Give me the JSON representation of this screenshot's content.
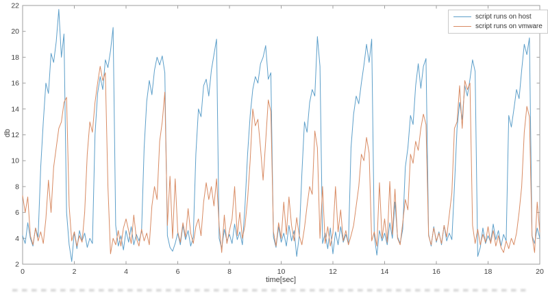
{
  "figure": {
    "background": "#ffffff",
    "axis_color": "#9e9e9e",
    "tick_label_color": "#3f3f3f"
  },
  "chart_data": {
    "type": "line",
    "title": "",
    "xlabel": "time[sec]",
    "ylabel": "db",
    "xlim": [
      0,
      20
    ],
    "ylim": [
      2,
      22
    ],
    "xticks": [
      0,
      2,
      4,
      6,
      8,
      10,
      12,
      14,
      16,
      18,
      20
    ],
    "yticks": [
      2,
      4,
      6,
      8,
      10,
      12,
      14,
      16,
      18,
      20,
      22
    ],
    "grid": false,
    "legend_position": "top-right",
    "x_step": 0.1,
    "series": [
      {
        "name": "script runs on host",
        "color": "#5b9ec9",
        "values": [
          4.2,
          3.6,
          5.2,
          4.0,
          3.4,
          4.8,
          4.1,
          9.5,
          13.0,
          16.0,
          15.2,
          18.3,
          17.6,
          19.2,
          21.7,
          18.0,
          19.8,
          6.0,
          3.5,
          2.2,
          4.5,
          3.2,
          4.6,
          3.8,
          4.4,
          3.3,
          4.0,
          3.6,
          12.0,
          15.2,
          16.5,
          15.5,
          17.8,
          17.2,
          18.5,
          20.3,
          5.0,
          3.4,
          4.2,
          3.1,
          4.6,
          3.7,
          4.9,
          3.5,
          4.3,
          3.8,
          4.5,
          11.0,
          14.6,
          16.2,
          15.1,
          17.0,
          18.0,
          17.4,
          18.1,
          16.8,
          4.2,
          3.3,
          3.0,
          3.6,
          4.4,
          3.5,
          5.0,
          3.9,
          4.6,
          3.4,
          4.1,
          10.5,
          14.0,
          13.4,
          15.8,
          16.3,
          15.0,
          17.0,
          18.2,
          19.4,
          4.0,
          3.2,
          4.7,
          3.8,
          4.3,
          3.6,
          5.1,
          3.9,
          4.5,
          3.5,
          6.5,
          10.5,
          13.5,
          15.5,
          16.5,
          16.0,
          17.5,
          18.0,
          18.9,
          16.3,
          16.8,
          4.1,
          3.3,
          4.9,
          3.7,
          4.4,
          3.4,
          5.0,
          3.8,
          4.6,
          2.6,
          4.2,
          9.0,
          13.0,
          12.2,
          14.5,
          15.5,
          15.0,
          19.6,
          17.3,
          3.6,
          4.4,
          3.2,
          4.8,
          2.8,
          4.5,
          3.5,
          4.9,
          3.7,
          4.3,
          3.6,
          11.0,
          13.6,
          15.0,
          14.4,
          16.0,
          17.4,
          19.0,
          17.6,
          19.4,
          4.2,
          2.7,
          4.6,
          3.8,
          4.4,
          3.5,
          5.2,
          4.0,
          6.8,
          4.1,
          3.6,
          4.7,
          9.5,
          11.0,
          13.5,
          12.8,
          15.8,
          17.5,
          15.6,
          17.3,
          17.9,
          4.3,
          3.4,
          4.9,
          3.7,
          4.5,
          3.5,
          5.0,
          3.8,
          4.4,
          3.9,
          8.0,
          12.5,
          14.5,
          13.2,
          15.8,
          15.0,
          16.3,
          17.8,
          16.9,
          2.6,
          3.3,
          4.8,
          3.6,
          4.2,
          3.7,
          5.1,
          3.9,
          4.6,
          3.4,
          4.3,
          3.8,
          13.5,
          12.6,
          14.0,
          15.5,
          14.8,
          17.0,
          19.0,
          18.2,
          19.5,
          4.2,
          3.6,
          4.8,
          4.0
        ]
      },
      {
        "name": "script runs on vmware",
        "color": "#d88a62",
        "values": [
          7.3,
          6.0,
          7.2,
          4.2,
          3.5,
          4.8,
          3.8,
          4.5,
          3.6,
          5.5,
          8.5,
          6.0,
          9.5,
          11.0,
          12.5,
          13.0,
          14.5,
          14.9,
          6.5,
          3.8,
          4.5,
          3.4,
          4.2,
          3.7,
          6.0,
          10.5,
          13.0,
          12.2,
          14.5,
          16.0,
          17.3,
          16.2,
          16.8,
          8.0,
          2.8,
          4.0,
          3.5,
          4.6,
          3.4,
          4.8,
          5.5,
          4.6,
          3.6,
          5.8,
          4.0,
          3.4,
          4.7,
          3.8,
          4.4,
          3.5,
          6.5,
          8.0,
          7.0,
          11.5,
          13.0,
          15.3,
          5.0,
          8.8,
          4.0,
          8.6,
          4.5,
          3.7,
          5.2,
          4.1,
          6.3,
          4.4,
          3.6,
          4.9,
          5.5,
          4.2,
          6.8,
          8.3,
          7.0,
          8.0,
          6.5,
          8.6,
          5.0,
          2.9,
          5.8,
          3.6,
          4.6,
          5.5,
          8.0,
          4.2,
          6.0,
          4.0,
          5.0,
          7.0,
          10.0,
          14.0,
          12.7,
          13.2,
          11.0,
          8.5,
          11.5,
          14.7,
          13.8,
          4.5,
          3.4,
          5.2,
          4.0,
          6.8,
          4.3,
          7.2,
          5.0,
          3.8,
          5.6,
          4.2,
          3.5,
          4.8,
          6.5,
          8.0,
          7.4,
          12.3,
          11.0,
          4.0,
          8.0,
          3.6,
          4.9,
          3.4,
          4.4,
          8.0,
          4.5,
          6.2,
          3.8,
          4.6,
          3.5,
          4.2,
          5.0,
          6.5,
          8.0,
          10.5,
          10.0,
          11.8,
          10.6,
          3.8,
          4.5,
          3.4,
          8.3,
          4.0,
          5.5,
          3.7,
          8.4,
          4.3,
          7.8,
          4.0,
          3.5,
          5.2,
          7.0,
          6.2,
          10.5,
          9.8,
          11.5,
          10.8,
          12.5,
          13.6,
          12.8,
          4.2,
          3.5,
          4.8,
          3.8,
          4.4,
          3.6,
          5.0,
          4.1,
          5.8,
          7.5,
          12.5,
          13.0,
          15.8,
          12.5,
          16.2,
          15.5,
          16.0,
          5.0,
          3.6,
          4.7,
          3.5,
          4.3,
          3.7,
          4.9,
          3.6,
          4.6,
          3.4,
          4.2,
          3.3,
          2.9,
          3.8,
          3.2,
          4.0,
          3.5,
          4.4,
          6.0,
          8.0,
          12.2,
          14.2,
          13.4,
          4.2,
          2.9,
          6.8,
          4.5
        ]
      }
    ]
  }
}
